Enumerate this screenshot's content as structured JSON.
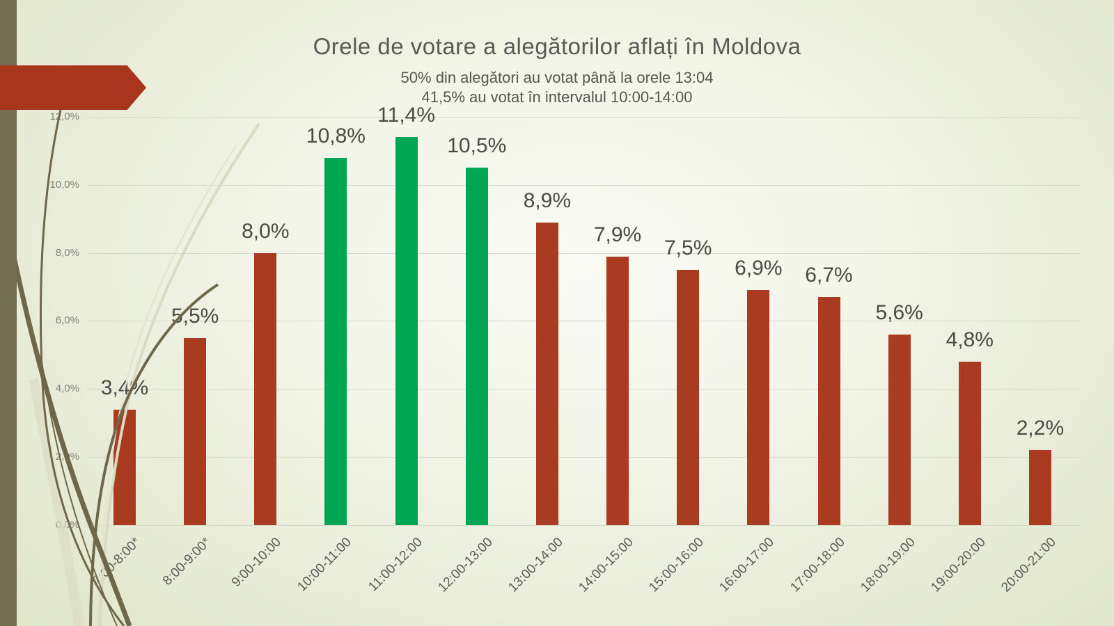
{
  "slide": {
    "title": "Orele de votare a alegătorilor aflați în Moldova",
    "subtitle1": "50% din alegători au votat până la orele 13:04",
    "subtitle2": "41,5% au votat în intervalul 10:00-14:00"
  },
  "theme": {
    "accent_red": "#a83b20",
    "accent_green": "#00a651",
    "arrow_red": "#a8361c",
    "band_olive": "#756e52",
    "wisp_dark": "#6e6749",
    "wisp_light": "#dbdac2",
    "gridline": "#d6dacc"
  },
  "chart_data": {
    "type": "bar",
    "title": "Orele de votare a alegătorilor aflați în Moldova",
    "subtitle": "50% din alegători au votat până la orele 13:04 / 41,5% au votat în intervalul 10:00-14:00",
    "xlabel": "",
    "ylabel": "",
    "grid": true,
    "legend": "none",
    "categories": [
      "7:00-8:00*",
      "8:00-9:00*",
      "9:00-10:00",
      "10:00-11:00",
      "11:00-12:00",
      "12:00-13:00",
      "13:00-14:00",
      "14:00-15:00",
      "15:00-16:00",
      "16:00-17:00",
      "17:00-18:00",
      "18:00-19:00",
      "19:00-20:00",
      "20:00-21:00"
    ],
    "values": [
      3.4,
      5.5,
      8.0,
      10.8,
      11.4,
      10.5,
      8.9,
      7.9,
      7.5,
      6.9,
      6.7,
      5.6,
      4.8,
      2.2
    ],
    "value_labels": [
      "3,4%",
      "5,5%",
      "8,0%",
      "10,8%",
      "11,4%",
      "10,5%",
      "8,9%",
      "7,9%",
      "7,5%",
      "6,9%",
      "6,7%",
      "5,6%",
      "4,8%",
      "2,2%"
    ],
    "bar_colors": [
      "#a83b20",
      "#a83b20",
      "#a83b20",
      "#00a651",
      "#00a651",
      "#00a651",
      "#a83b20",
      "#a83b20",
      "#a83b20",
      "#a83b20",
      "#a83b20",
      "#a83b20",
      "#a83b20",
      "#a83b20"
    ],
    "highlighted_categories": [
      "10:00-11:00",
      "11:00-12:00",
      "12:00-13:00"
    ],
    "y_axis": {
      "min": 0,
      "max": 12,
      "tick_values": [
        0,
        2,
        4,
        6,
        8,
        10,
        12
      ],
      "tick_labels": [
        "0,0%",
        "2,0%",
        "4,0%",
        "6,0%",
        "8,0%",
        "10,0%",
        "12,0%"
      ]
    }
  }
}
